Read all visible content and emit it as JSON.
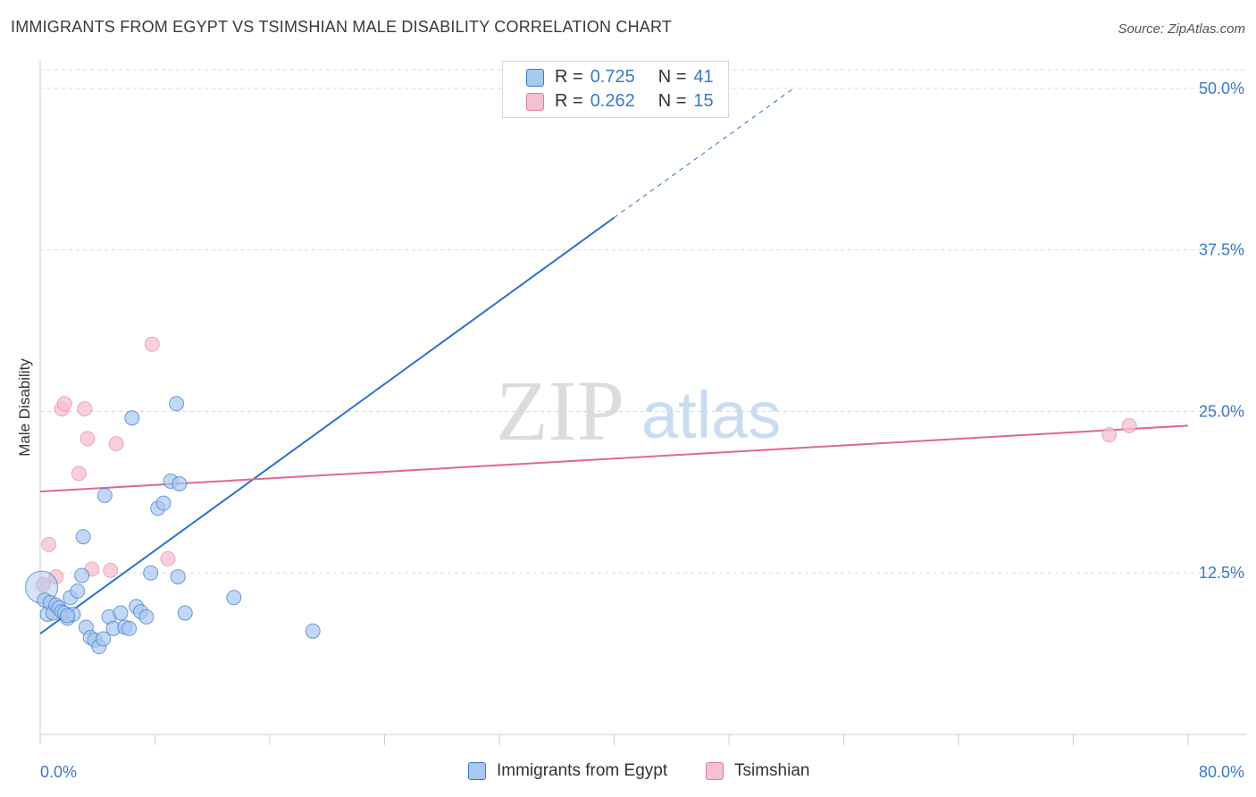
{
  "title": "IMMIGRANTS FROM EGYPT VS TSIMSHIAN MALE DISABILITY CORRELATION CHART",
  "source": "Source: ZipAtlas.com",
  "watermark": {
    "zip": "ZIP",
    "atlas": "atlas"
  },
  "legend_top": [
    {
      "r_label": "R =",
      "r_value": "0.725",
      "n_label": "N =",
      "n_value": "41"
    },
    {
      "r_label": "R =",
      "r_value": "0.262",
      "n_label": "N =",
      "n_value": "15"
    }
  ],
  "legend_bottom": [
    {
      "label": "Immigrants from Egypt"
    },
    {
      "label": "Tsimshian"
    }
  ],
  "colors": {
    "blue_fill": "#a9c8ef",
    "blue_stroke": "#3a78c9",
    "blue_line": "#2a72d0",
    "pink_fill": "#f5c0cf",
    "pink_stroke": "#e27b9b",
    "pink_line": "#e0678e",
    "grid": "#d9d9d9",
    "tick_text": "#3a78c9"
  },
  "chart_data": {
    "type": "scatter",
    "title": "IMMIGRANTS FROM EGYPT VS TSIMSHIAN MALE DISABILITY CORRELATION CHART",
    "xlabel": "",
    "ylabel": "Male Disability",
    "xlim": [
      0,
      80
    ],
    "ylim": [
      0,
      52
    ],
    "x_tick_labels": [
      "0.0%",
      "80.0%"
    ],
    "y_ticks": [
      12.5,
      25.0,
      37.5,
      50.0
    ],
    "y_tick_labels": [
      "12.5%",
      "25.0%",
      "37.5%",
      "50.0%"
    ],
    "series": [
      {
        "name": "Immigrants from Egypt",
        "r": 0.725,
        "n": 41,
        "points": [
          [
            0.1,
            11.4
          ],
          [
            0.3,
            10.4
          ],
          [
            0.5,
            9.3
          ],
          [
            0.7,
            10.2
          ],
          [
            0.9,
            9.4
          ],
          [
            1.1,
            10.0
          ],
          [
            1.3,
            9.8
          ],
          [
            1.5,
            9.5
          ],
          [
            1.7,
            9.4
          ],
          [
            1.9,
            9.0
          ],
          [
            2.1,
            10.6
          ],
          [
            2.3,
            9.3
          ],
          [
            2.6,
            11.1
          ],
          [
            2.9,
            12.3
          ],
          [
            3.2,
            8.3
          ],
          [
            3.5,
            7.5
          ],
          [
            3.8,
            7.3
          ],
          [
            4.1,
            6.8
          ],
          [
            4.4,
            7.4
          ],
          [
            4.8,
            9.1
          ],
          [
            5.1,
            8.2
          ],
          [
            5.6,
            9.4
          ],
          [
            5.9,
            8.3
          ],
          [
            6.2,
            8.2
          ],
          [
            6.7,
            9.9
          ],
          [
            7.0,
            9.5
          ],
          [
            7.4,
            9.1
          ],
          [
            6.4,
            24.5
          ],
          [
            8.2,
            17.5
          ],
          [
            8.6,
            17.9
          ],
          [
            9.1,
            19.6
          ],
          [
            9.5,
            25.6
          ],
          [
            9.7,
            19.4
          ],
          [
            4.5,
            18.5
          ],
          [
            3.0,
            15.3
          ],
          [
            1.9,
            9.2
          ],
          [
            7.7,
            12.5
          ],
          [
            10.1,
            9.4
          ],
          [
            13.5,
            10.6
          ],
          [
            19.0,
            8.0
          ],
          [
            9.6,
            12.2
          ]
        ]
      },
      {
        "name": "Tsimshian",
        "r": 0.262,
        "n": 15,
        "points": [
          [
            0.2,
            11.6
          ],
          [
            0.6,
            14.7
          ],
          [
            1.1,
            12.2
          ],
          [
            1.5,
            25.2
          ],
          [
            1.7,
            25.6
          ],
          [
            2.7,
            20.2
          ],
          [
            3.1,
            25.2
          ],
          [
            3.3,
            22.9
          ],
          [
            3.6,
            12.8
          ],
          [
            4.9,
            12.7
          ],
          [
            5.3,
            22.5
          ],
          [
            7.8,
            30.2
          ],
          [
            8.9,
            13.6
          ],
          [
            74.5,
            23.2
          ],
          [
            75.9,
            23.9
          ]
        ]
      }
    ],
    "trendlines": [
      {
        "series": "Immigrants from Egypt",
        "solid_from": [
          0,
          7.8
        ],
        "solid_to": [
          40,
          40.0
        ],
        "dashed_to": [
          52.5,
          50.0
        ]
      },
      {
        "series": "Tsimshian",
        "from": [
          0,
          18.8
        ],
        "to": [
          80,
          23.9
        ]
      }
    ]
  }
}
